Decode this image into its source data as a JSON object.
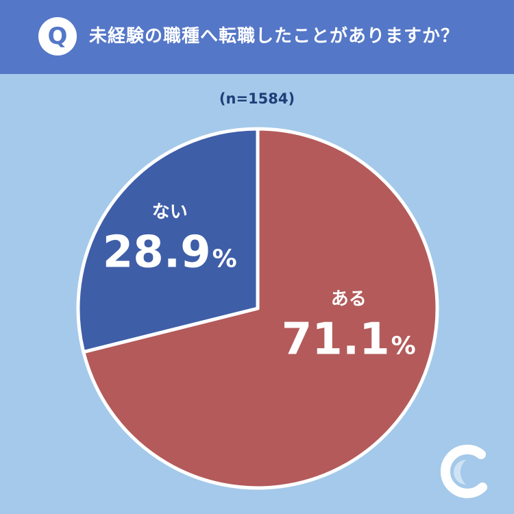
{
  "header": {
    "badge": "Q",
    "question": "未経験の職種へ転職したことがありますか？"
  },
  "sample_note": "(n=1584)",
  "colors": {
    "header_bg": "#5577c8",
    "background": "#a4c9ea",
    "yes_slice": "#b45a5a",
    "no_slice": "#3f5ea8"
  },
  "logo_icon": "brand-c-logo-icon",
  "chart_data": {
    "type": "pie",
    "title": "",
    "categories": [
      "ある",
      "ない"
    ],
    "values": [
      71.1,
      28.9
    ],
    "value_labels": [
      "71.1",
      "28.9"
    ],
    "unit": "%",
    "colors": [
      "#b45a5a",
      "#3f5ea8"
    ],
    "start_angle": "12 o'clock",
    "direction": "clockwise",
    "legend": "none"
  }
}
